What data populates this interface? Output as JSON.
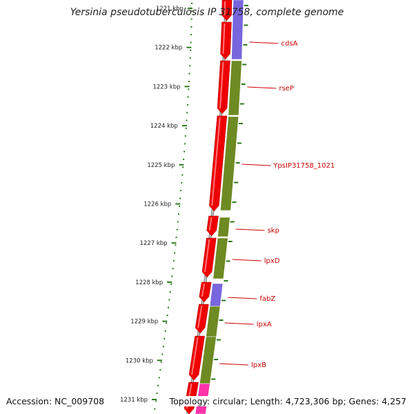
{
  "title": "Yersinia pseudotuberculosis IP 31758, complete genome",
  "accession": "Accession: NC_009708",
  "summary": "Topology: circular; Length: 4,723,306 bp; Genes: 4,257",
  "colors": {
    "backbone": "#888888",
    "tick": "#2a7a1a",
    "cds": "#ee0000",
    "cog_purple": "#7766dd",
    "cog_olive": "#6e8a22",
    "cog_pink": "#ff33aa",
    "label": "#cc0000"
  },
  "ticks": [
    "1221 kbp",
    "1222 kbp",
    "1223 kbp",
    "1224 kbp",
    "1225 kbp",
    "1226 kbp",
    "1227 kbp",
    "1228 kbp",
    "1229 kbp",
    "1230 kbp",
    "1231 kbp"
  ],
  "genes": [
    {
      "name": "cdsA"
    },
    {
      "name": "rseP"
    },
    {
      "name": "YpsIP31758_1021"
    },
    {
      "name": "skp"
    },
    {
      "name": "lpxD"
    },
    {
      "name": "fabZ"
    },
    {
      "name": "lpxA"
    },
    {
      "name": "lpxB"
    }
  ]
}
